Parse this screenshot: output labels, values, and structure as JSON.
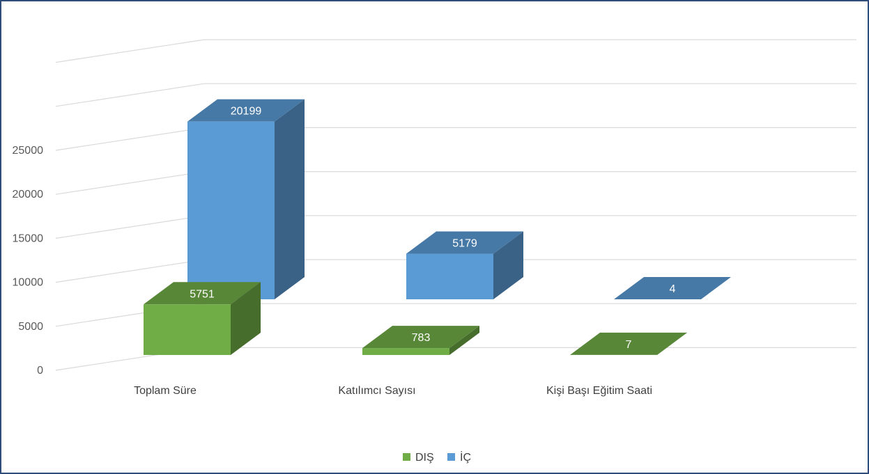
{
  "chart_data": {
    "type": "bar",
    "subtype": "3d-clustered-column",
    "categories": [
      "Toplam Süre",
      "Katılımcı Sayısı",
      "Kişi Başı Eğitim Saati"
    ],
    "series": [
      {
        "name": "DIŞ",
        "values": [
          5751,
          783,
          7
        ],
        "color": "#70ad47"
      },
      {
        "name": "İÇ",
        "values": [
          20199,
          5179,
          4
        ],
        "color": "#5b9bd5"
      }
    ],
    "yticks": [
      0,
      5000,
      10000,
      15000,
      20000,
      25000
    ],
    "ylim": [
      0,
      25000
    ],
    "grid": true,
    "legend": "bottom"
  }
}
